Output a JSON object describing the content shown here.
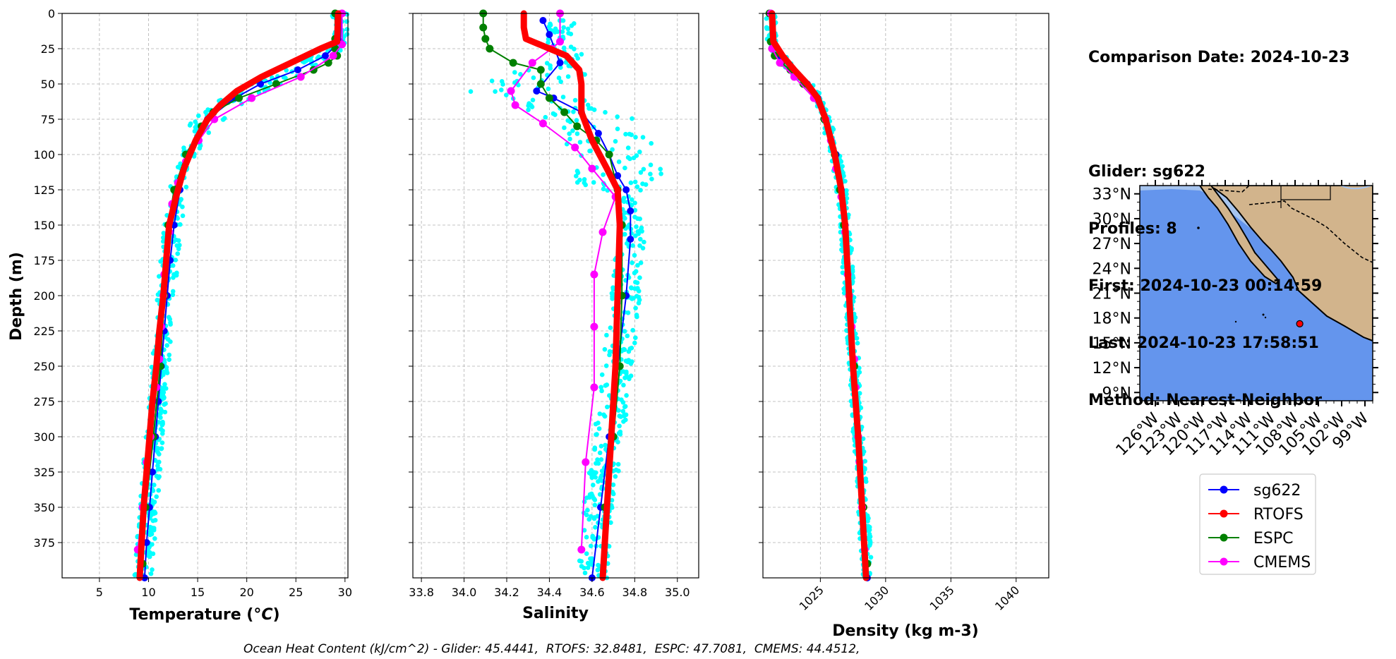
{
  "info": {
    "comparison_date": "Comparison Date: 2024-10-23",
    "glider": "Glider: sg622",
    "profiles": "Profiles: 8",
    "first": "First: 2024-10-23 00:14:59",
    "last": "Last: 2024-10-23 17:58:51",
    "method": "Method: Nearest-Neighbor"
  },
  "footer": {
    "ohc": "Ocean Heat Content (kJ/cm^2) - Glider: 45.4441,  RTOFS: 32.8481,  ESPC: 47.7081,  CMEMS: 44.4512,"
  },
  "colors": {
    "sg622": "#0000ff",
    "RTOFS": "#ff0000",
    "ESPC": "#008000",
    "CMEMS": "#ff00ff",
    "glider_raw": "#00ffff",
    "ocean": "#6495ed",
    "shelf": "#a6c4ee",
    "land": "#d2b48c"
  },
  "legend": [
    "sg622",
    "RTOFS",
    "ESPC",
    "CMEMS"
  ],
  "map": {
    "lat_ticks": [
      "33°N",
      "30°N",
      "27°N",
      "24°N",
      "21°N",
      "18°N",
      "15°N",
      "12°N",
      "9°N"
    ],
    "lon_ticks": [
      "126°W",
      "123°W",
      "120°W",
      "117°W",
      "114°W",
      "111°W",
      "108°W",
      "105°W",
      "102°W",
      "99°W"
    ],
    "lon_range": [
      -128,
      -98
    ],
    "lat_range": [
      8,
      34
    ],
    "glider_position": {
      "lon": -107.4,
      "lat": 17.3
    }
  },
  "chart_data": [
    {
      "type": "line",
      "xlabel": "Temperature (°C)",
      "ylabel": "Depth (m)",
      "xlim": [
        1.2,
        30.3
      ],
      "ylim": [
        400,
        0
      ],
      "xticks": [
        5,
        10,
        15,
        20,
        25,
        30
      ],
      "yticks": [
        0,
        25,
        50,
        75,
        100,
        125,
        150,
        175,
        200,
        225,
        250,
        275,
        300,
        325,
        350,
        375
      ],
      "series": [
        {
          "name": "sg622",
          "depth": [
            0,
            20,
            30,
            40,
            50,
            60,
            75,
            100,
            125,
            150,
            175,
            200,
            225,
            250,
            275,
            300,
            325,
            350,
            375,
            400
          ],
          "values": [
            29.6,
            29.5,
            28.0,
            25.2,
            21.4,
            18.8,
            16.0,
            14.1,
            13.2,
            12.6,
            12.2,
            11.9,
            11.6,
            11.3,
            11.0,
            10.7,
            10.4,
            10.1,
            9.8,
            9.6
          ]
        },
        {
          "name": "RTOFS",
          "depth": [
            0,
            20,
            25,
            35,
            45,
            55,
            65,
            75,
            90,
            110,
            130,
            150,
            175,
            200,
            225,
            250,
            275,
            300,
            325,
            350,
            375,
            400
          ],
          "values": [
            29.3,
            29.2,
            27.5,
            24.5,
            21.5,
            19.0,
            17.3,
            16.0,
            14.8,
            13.6,
            12.8,
            12.1,
            11.8,
            11.5,
            11.1,
            10.8,
            10.4,
            10.1,
            9.8,
            9.5,
            9.3,
            9.1
          ]
        },
        {
          "name": "ESPC",
          "depth": [
            0,
            18,
            25,
            30,
            35,
            40,
            50,
            60,
            70,
            80,
            100,
            125,
            150,
            200,
            250,
            300,
            350,
            390
          ],
          "values": [
            29.0,
            29.0,
            29.0,
            29.2,
            28.3,
            26.8,
            23.0,
            19.2,
            16.6,
            15.4,
            13.8,
            12.6,
            12.0,
            11.6,
            11.2,
            10.5,
            9.7,
            9.4
          ]
        },
        {
          "name": "CMEMS",
          "depth": [
            0,
            22,
            30,
            45,
            60,
            75,
            90,
            105,
            120,
            135,
            155,
            185,
            200,
            222,
            245,
            265,
            300,
            318,
            350,
            380
          ],
          "values": [
            29.7,
            29.7,
            28.8,
            25.5,
            20.5,
            16.7,
            15.1,
            13.8,
            13.0,
            12.4,
            12.1,
            11.6,
            11.5,
            11.3,
            11.1,
            10.8,
            10.2,
            9.8,
            9.4,
            8.9
          ]
        }
      ],
      "raw": {
        "name": "glider raw",
        "depth": [
          0,
          20,
          30,
          40,
          50,
          60,
          75,
          100,
          125,
          150,
          175,
          200,
          250,
          300,
          350,
          400
        ],
        "values": [
          29.6,
          29.6,
          28.3,
          25.7,
          22.0,
          19.0,
          16.1,
          14.0,
          13.0,
          12.5,
          12.1,
          11.8,
          11.2,
          10.6,
          10.0,
          9.4
        ],
        "spread": 0.9
      }
    },
    {
      "type": "line",
      "xlabel": "Salinity",
      "xlim": [
        33.76,
        35.1
      ],
      "ylim": [
        400,
        0
      ],
      "xticks": [
        "33.8",
        "34.0",
        "34.2",
        "34.4",
        "34.6",
        "34.8",
        "35.0"
      ],
      "series": [
        {
          "name": "sg622",
          "depth": [
            5,
            15,
            35,
            55,
            60,
            70,
            85,
            100,
            115,
            125,
            140,
            160,
            200,
            250,
            300,
            350,
            400
          ],
          "values": [
            34.37,
            34.4,
            34.45,
            34.34,
            34.42,
            34.55,
            34.63,
            34.68,
            34.72,
            34.76,
            34.78,
            34.78,
            34.76,
            34.72,
            34.68,
            34.64,
            34.6
          ]
        },
        {
          "name": "RTOFS",
          "depth": [
            0,
            10,
            18,
            30,
            40,
            50,
            70,
            90,
            110,
            125,
            150,
            200,
            250,
            300,
            350,
            400
          ],
          "values": [
            34.28,
            34.28,
            34.29,
            34.48,
            34.54,
            34.55,
            34.55,
            34.6,
            34.67,
            34.72,
            34.73,
            34.72,
            34.71,
            34.69,
            34.67,
            34.65
          ]
        },
        {
          "name": "ESPC",
          "depth": [
            0,
            10,
            18,
            25,
            35,
            40,
            50,
            60,
            70,
            80,
            90,
            100,
            125,
            150,
            200,
            250,
            300,
            350
          ],
          "values": [
            34.09,
            34.09,
            34.1,
            34.12,
            34.23,
            34.36,
            34.36,
            34.4,
            34.47,
            34.53,
            34.62,
            34.68,
            34.72,
            34.74,
            34.74,
            34.73,
            34.7,
            34.66
          ]
        },
        {
          "name": "CMEMS",
          "depth": [
            0,
            20,
            25,
            35,
            55,
            65,
            78,
            95,
            110,
            130,
            155,
            185,
            222,
            265,
            318,
            380
          ],
          "values": [
            34.45,
            34.45,
            34.41,
            34.32,
            34.22,
            34.24,
            34.37,
            34.52,
            34.6,
            34.71,
            34.65,
            34.61,
            34.61,
            34.61,
            34.57,
            34.55
          ]
        }
      ],
      "raw": {
        "name": "glider raw",
        "depth": [
          5,
          20,
          30,
          40,
          50,
          55,
          65,
          75,
          90,
          110,
          130,
          160,
          200,
          250,
          300,
          350,
          400
        ],
        "values": [
          34.45,
          34.45,
          34.5,
          34.42,
          34.3,
          34.2,
          34.45,
          34.6,
          34.68,
          34.72,
          34.76,
          34.78,
          34.76,
          34.72,
          34.68,
          34.63,
          34.6
        ],
        "spread": 0.07
      }
    },
    {
      "type": "line",
      "xlabel": "Density (kg m-3)",
      "xlim": [
        1020.6,
        1042.5
      ],
      "ylim": [
        400,
        0
      ],
      "xticks": [
        "1025",
        "1030",
        "1035",
        "1040"
      ],
      "series": [
        {
          "name": "sg622",
          "depth": [
            0,
            20,
            30,
            40,
            50,
            60,
            75,
            100,
            125,
            150,
            200,
            250,
            300,
            350,
            400
          ],
          "values": [
            1021.2,
            1021.3,
            1021.9,
            1022.9,
            1024.0,
            1024.8,
            1025.4,
            1026.2,
            1026.6,
            1026.9,
            1027.2,
            1027.6,
            1027.9,
            1028.3,
            1028.6
          ]
        },
        {
          "name": "RTOFS",
          "depth": [
            0,
            20,
            30,
            40,
            50,
            60,
            75,
            100,
            125,
            150,
            200,
            250,
            300,
            350,
            400
          ],
          "values": [
            1021.3,
            1021.4,
            1022.1,
            1023.0,
            1024.0,
            1024.8,
            1025.4,
            1026.1,
            1026.6,
            1026.9,
            1027.2,
            1027.5,
            1027.9,
            1028.2,
            1028.5
          ]
        },
        {
          "name": "ESPC",
          "depth": [
            0,
            20,
            30,
            35,
            40,
            50,
            60,
            75,
            100,
            125,
            150,
            200,
            250,
            300,
            350,
            390
          ],
          "values": [
            1021.1,
            1021.2,
            1021.5,
            1022.0,
            1022.7,
            1023.7,
            1024.6,
            1025.3,
            1026.1,
            1026.5,
            1026.8,
            1027.2,
            1027.6,
            1027.9,
            1028.3,
            1028.6
          ]
        },
        {
          "name": "CMEMS",
          "depth": [
            0,
            25,
            35,
            45,
            60,
            75,
            90,
            110,
            130,
            155,
            185,
            200,
            222,
            245,
            265,
            300,
            318,
            350,
            380
          ],
          "values": [
            1021.2,
            1021.3,
            1021.9,
            1023.0,
            1024.5,
            1025.4,
            1025.8,
            1026.2,
            1026.6,
            1026.9,
            1027.1,
            1027.2,
            1027.4,
            1027.6,
            1027.7,
            1027.9,
            1028.0,
            1028.2,
            1028.4
          ]
        }
      ],
      "raw": {
        "name": "glider raw",
        "depth": [
          0,
          20,
          30,
          40,
          50,
          60,
          75,
          100,
          125,
          150,
          200,
          250,
          300,
          350,
          400
        ],
        "values": [
          1021.2,
          1021.3,
          1021.9,
          1022.9,
          1024.0,
          1024.8,
          1025.4,
          1026.2,
          1026.6,
          1026.9,
          1027.2,
          1027.6,
          1027.9,
          1028.3,
          1028.6
        ],
        "spread": 0.4
      }
    }
  ]
}
